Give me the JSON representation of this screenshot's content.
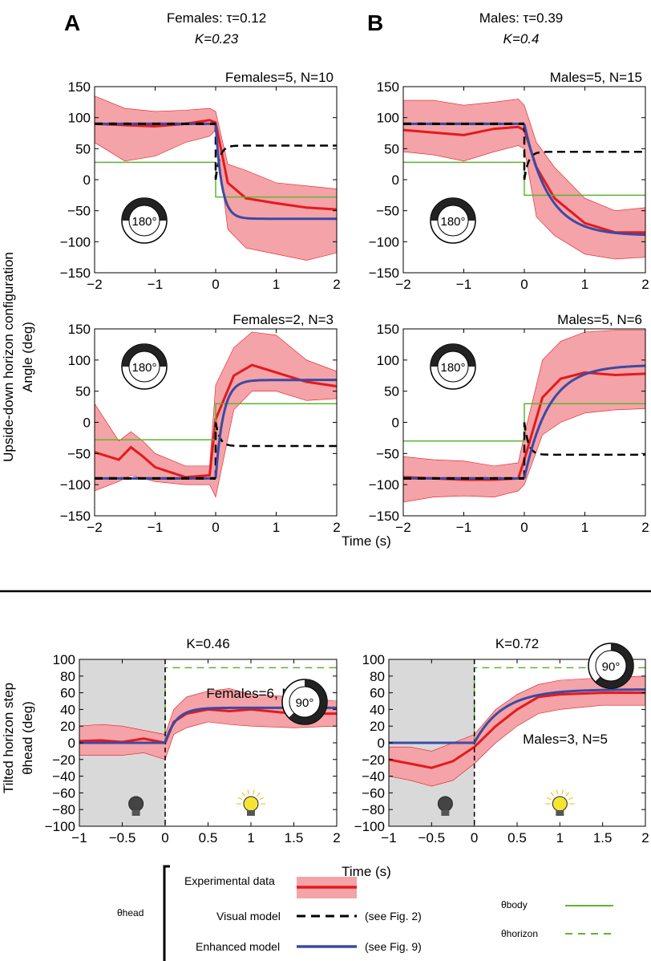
{
  "panel_letters": [
    "A",
    "B"
  ],
  "header": {
    "females": {
      "line1": "Females: τ=0.12",
      "line2": "K=0.23"
    },
    "males": {
      "line1": "Males: τ=0.39",
      "line2": "K=0.4"
    }
  },
  "ylabel_top": {
    "line1": "Upside-down horizon configuration",
    "line2": "Angle (deg)"
  },
  "ylabel_bottom": {
    "line1": "Tilted horizon step",
    "line2": "θhead (deg)"
  },
  "xlabel": "Time (s)",
  "icons": {
    "dial_180": "180°",
    "dial_90": "90°",
    "lamp_off": "dark-bulb-icon",
    "lamp_on": "lit-bulb-icon"
  },
  "legend": {
    "theta_head": "θhead",
    "experimental": "Experimental data",
    "visual": "Visual model",
    "enhanced": "Enhanced model",
    "see_fig2": "(see Fig. 2)",
    "see_fig9": "(see Fig. 9)",
    "theta_body": "θbody",
    "theta_horizon": "θhorizon"
  },
  "colors": {
    "data": "#e31a1c",
    "band": "#f4a3a8",
    "visual": "#000000",
    "enhanced": "#3b4aa5",
    "body": "#5cb531",
    "dark_bg": "#d9d9d9"
  },
  "chart_data": [
    {
      "id": "A1",
      "type": "line",
      "title": "Females=5, N=10",
      "xlim": [
        -2,
        2
      ],
      "ylim": [
        -150,
        150
      ],
      "xticks": [
        -2,
        -1,
        0,
        1,
        2
      ],
      "yticks": [
        -150,
        -100,
        -50,
        0,
        50,
        100,
        150
      ],
      "step_sign": -1,
      "horizon_pre": 28,
      "horizon_post": -28,
      "visual_end": 55,
      "start": 90,
      "end": -63,
      "rate": 10,
      "x": [
        -2,
        -1.5,
        -1,
        -0.5,
        -0.1,
        0,
        0.2,
        0.5,
        1,
        1.5,
        2
      ],
      "data": [
        90,
        88,
        86,
        90,
        96,
        92,
        -5,
        -30,
        -38,
        -45,
        -48
      ],
      "band_low": [
        60,
        30,
        38,
        60,
        70,
        80,
        -80,
        -110,
        -120,
        -130,
        -118
      ],
      "band_high": [
        135,
        115,
        110,
        112,
        115,
        110,
        25,
        15,
        -5,
        -10,
        -15
      ]
    },
    {
      "id": "B1",
      "type": "line",
      "title": "Males=5, N=15",
      "xlim": [
        -2,
        2
      ],
      "ylim": [
        -150,
        150
      ],
      "xticks": [
        -2,
        -1,
        0,
        1,
        2
      ],
      "yticks": [
        -150,
        -100,
        -50,
        0,
        50,
        100,
        150
      ],
      "step_sign": -1,
      "horizon_pre": 28,
      "horizon_post": -25,
      "visual_end": 45,
      "start": 90,
      "end": -90,
      "rate": 2.5,
      "x": [
        -2,
        -1.5,
        -1,
        -0.5,
        -0.1,
        0,
        0.2,
        0.5,
        1,
        1.5,
        2
      ],
      "data": [
        80,
        76,
        72,
        82,
        85,
        80,
        20,
        -30,
        -70,
        -85,
        -85
      ],
      "band_low": [
        45,
        40,
        30,
        45,
        55,
        50,
        -60,
        -90,
        -120,
        -128,
        -125
      ],
      "band_high": [
        128,
        128,
        120,
        125,
        130,
        120,
        60,
        20,
        -30,
        -50,
        -45
      ]
    },
    {
      "id": "A2",
      "type": "line",
      "title": "Females=2, N=3",
      "xlim": [
        -2,
        2
      ],
      "ylim": [
        -150,
        150
      ],
      "xticks": [
        -2,
        -1,
        0,
        1,
        2
      ],
      "yticks": [
        -150,
        -100,
        -50,
        0,
        50,
        100,
        150
      ],
      "step_sign": 1,
      "horizon_pre": -28,
      "horizon_post": 30,
      "visual_end": -38,
      "start": -90,
      "end": 68,
      "rate": 8,
      "x": [
        -2,
        -1.6,
        -1.4,
        -1.2,
        -1,
        -0.5,
        -0.1,
        0,
        0.3,
        0.6,
        1,
        1.5,
        2
      ],
      "data": [
        -48,
        -60,
        -40,
        -55,
        -72,
        -88,
        -85,
        5,
        75,
        92,
        80,
        65,
        58
      ],
      "band_low": [
        -110,
        -95,
        -85,
        -90,
        -95,
        -100,
        -100,
        -120,
        20,
        50,
        50,
        35,
        38
      ],
      "band_high": [
        30,
        -30,
        -15,
        -30,
        -50,
        -70,
        -70,
        60,
        120,
        145,
        140,
        100,
        82
      ]
    },
    {
      "id": "B2",
      "type": "line",
      "title": "Males=5, N=6",
      "xlim": [
        -2,
        2
      ],
      "ylim": [
        -150,
        150
      ],
      "xticks": [
        -2,
        -1,
        0,
        1,
        2
      ],
      "yticks": [
        -150,
        -100,
        -50,
        0,
        50,
        100,
        150
      ],
      "step_sign": 1,
      "horizon_pre": -30,
      "horizon_post": 30,
      "visual_end": -52,
      "start": -90,
      "end": 92,
      "rate": 2.5,
      "x": [
        -2,
        -1.5,
        -1,
        -0.5,
        -0.1,
        0,
        0.3,
        0.6,
        1,
        1.5,
        2
      ],
      "data": [
        -88,
        -90,
        -92,
        -92,
        -90,
        -60,
        40,
        70,
        80,
        76,
        78
      ],
      "band_low": [
        -128,
        -120,
        -118,
        -120,
        -110,
        -100,
        -20,
        0,
        15,
        20,
        22
      ],
      "band_high": [
        -55,
        -60,
        -62,
        -70,
        -65,
        -20,
        100,
        130,
        145,
        148,
        148
      ]
    },
    {
      "id": "A3",
      "type": "line",
      "title": "K=0.46",
      "label": "Females=6, N=14",
      "xlim": [
        -1,
        2
      ],
      "ylim": [
        -100,
        100
      ],
      "xticks": [
        -1,
        -0.5,
        0,
        0.5,
        1,
        1.5,
        2
      ],
      "yticks": [
        -100,
        -80,
        -60,
        -40,
        -20,
        0,
        20,
        40,
        60,
        80,
        100
      ],
      "dark_until": 0,
      "horizon_pre": 0,
      "horizon_post": 90,
      "start": 0,
      "end": 42,
      "rate": 8,
      "x": [
        -1,
        -0.75,
        -0.5,
        -0.25,
        0,
        0.1,
        0.25,
        0.5,
        0.75,
        1,
        1.5,
        2
      ],
      "data": [
        2,
        3,
        1,
        5,
        0,
        25,
        35,
        40,
        38,
        40,
        35,
        35
      ],
      "band_low": [
        -15,
        -15,
        -15,
        -12,
        -20,
        10,
        18,
        25,
        22,
        20,
        18,
        20
      ],
      "band_high": [
        20,
        22,
        20,
        15,
        10,
        40,
        55,
        62,
        65,
        58,
        55,
        50
      ]
    },
    {
      "id": "B3",
      "type": "line",
      "title": "K=0.72",
      "label": "Males=3, N=5",
      "xlim": [
        -1,
        2
      ],
      "ylim": [
        -100,
        100
      ],
      "xticks": [
        -1,
        -0.5,
        0,
        0.5,
        1,
        1.5,
        2
      ],
      "yticks": [
        -100,
        -80,
        -60,
        -40,
        -20,
        0,
        20,
        40,
        60,
        80,
        100
      ],
      "dark_until": 0,
      "horizon_pre": 0,
      "horizon_post": 90,
      "start": 0,
      "end": 64,
      "rate": 3,
      "x": [
        -1,
        -0.75,
        -0.5,
        -0.25,
        0,
        0.25,
        0.5,
        0.75,
        1,
        1.5,
        2
      ],
      "data": [
        -20,
        -25,
        -30,
        -22,
        -5,
        20,
        40,
        55,
        58,
        60,
        60
      ],
      "band_low": [
        -40,
        -45,
        -52,
        -45,
        -25,
        0,
        20,
        35,
        40,
        45,
        45
      ],
      "band_high": [
        -5,
        -5,
        -10,
        0,
        10,
        40,
        58,
        70,
        75,
        78,
        80
      ]
    }
  ]
}
